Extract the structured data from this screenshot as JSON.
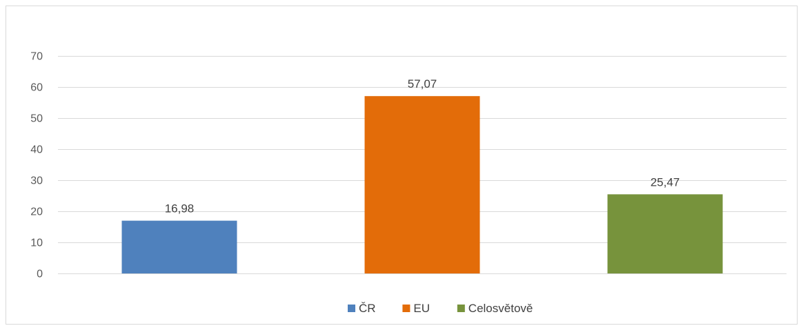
{
  "chart_data": {
    "type": "bar",
    "categories": [
      "ČR",
      "EU",
      "Celosvětově"
    ],
    "values": [
      16.98,
      57.07,
      25.47
    ],
    "data_labels": [
      "16,98",
      "57,07",
      "25,47"
    ],
    "colors": [
      "#4f81bd",
      "#e36c09",
      "#77933c"
    ],
    "title": "",
    "xlabel": "",
    "ylabel": "",
    "ylim": [
      0,
      70
    ],
    "yticks": [
      0,
      10,
      20,
      30,
      40,
      50,
      60,
      70
    ],
    "grid": true,
    "legend": {
      "position": "bottom",
      "entries": [
        "ČR",
        "EU",
        "Celosvětově"
      ]
    }
  }
}
